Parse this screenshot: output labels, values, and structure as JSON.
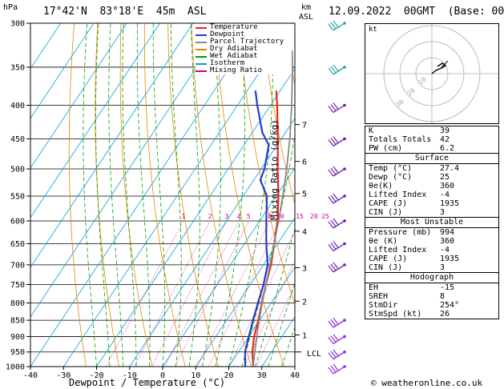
{
  "header": {
    "location": "17°42'N  83°18'E  45m  ASL",
    "datetime": "12.09.2022  00GMT  (Base: 00)",
    "hpa_unit": "hPa",
    "km_unit": "km",
    "asl_unit": "ASL"
  },
  "legend": [
    {
      "label": "Temperature",
      "color": "#e8281e"
    },
    {
      "label": "Dewpoint",
      "color": "#1e3cd2"
    },
    {
      "label": "Parcel Trajectory",
      "color": "#888888"
    },
    {
      "label": "Dry Adiabat",
      "color": "#e08a00"
    },
    {
      "label": "Wet Adiabat",
      "color": "#00a000"
    },
    {
      "label": "Isotherm",
      "color": "#00a0e0"
    },
    {
      "label": "Mixing Ratio",
      "color": "#d0008a"
    }
  ],
  "axes": {
    "xlabel": "Dewpoint / Temperature (°C)",
    "mixing_label": "Mixing Ratio (g/kg)",
    "lcl_label": "LCL"
  },
  "chart_data": {
    "type": "line",
    "pressure_ticks": [
      300,
      350,
      400,
      450,
      500,
      550,
      600,
      650,
      700,
      750,
      800,
      850,
      900,
      950,
      1000
    ],
    "x_ticks": [
      -40,
      -30,
      -20,
      -10,
      0,
      10,
      20,
      30,
      40
    ],
    "xlim": [
      -40,
      40
    ],
    "ylim": [
      1000,
      300
    ],
    "km_ticks": [
      {
        "km": "7",
        "p": 428
      },
      {
        "km": "6",
        "p": 487
      },
      {
        "km": "5",
        "p": 545
      },
      {
        "km": "4",
        "p": 622
      },
      {
        "km": "3",
        "p": 707
      },
      {
        "km": "2",
        "p": 795
      },
      {
        "km": "1",
        "p": 895
      }
    ],
    "lcl_pressure": 950,
    "mixing_ratio_labels": [
      "1",
      "2",
      "3",
      "4",
      "5",
      "8",
      "10",
      "15",
      "20",
      "25"
    ],
    "mixing_ratio_values": [
      1,
      2,
      3,
      4,
      5,
      8,
      10,
      15,
      20,
      25
    ],
    "series": [
      {
        "name": "Temperature",
        "points": [
          [
            1000,
            27.4
          ],
          [
            950,
            24.2
          ],
          [
            900,
            21.6
          ],
          [
            850,
            19.6
          ],
          [
            800,
            17.2
          ],
          [
            750,
            14.7
          ],
          [
            700,
            12.3
          ],
          [
            650,
            9.0
          ],
          [
            600,
            5.4
          ],
          [
            550,
            0.7
          ],
          [
            500,
            -5.0
          ],
          [
            450,
            -11.0
          ],
          [
            400,
            -18.0
          ],
          [
            380,
            -21.2
          ]
        ]
      },
      {
        "name": "Dewpoint",
        "points": [
          [
            1000,
            25.0
          ],
          [
            950,
            22.0
          ],
          [
            900,
            20.0
          ],
          [
            850,
            18.0
          ],
          [
            800,
            16.0
          ],
          [
            750,
            14.0
          ],
          [
            700,
            11.3
          ],
          [
            650,
            6.6
          ],
          [
            600,
            2.0
          ],
          [
            550,
            -2.8
          ],
          [
            520,
            -8.0
          ],
          [
            500,
            -9.0
          ],
          [
            460,
            -12.5
          ],
          [
            440,
            -17.0
          ],
          [
            400,
            -24.0
          ],
          [
            380,
            -27.5
          ]
        ]
      },
      {
        "name": "Parcel Trajectory",
        "points": [
          [
            1000,
            27.4
          ],
          [
            950,
            24.9
          ],
          [
            900,
            22.4
          ],
          [
            850,
            19.9
          ],
          [
            800,
            17.3
          ],
          [
            750,
            14.7
          ],
          [
            700,
            12.0
          ],
          [
            650,
            9.0
          ],
          [
            600,
            5.7
          ],
          [
            550,
            2.0
          ],
          [
            500,
            -2.3
          ],
          [
            450,
            -7.4
          ],
          [
            400,
            -13.6
          ],
          [
            350,
            -21.0
          ],
          [
            330,
            -24.5
          ]
        ]
      }
    ]
  },
  "hodograph": {
    "label": "kt",
    "ring_labels": [
      "10",
      "20",
      "30"
    ]
  },
  "wind_barb_pressures": [
    300,
    350,
    400,
    450,
    500,
    550,
    600,
    650,
    700,
    850,
    900,
    950,
    1000
  ],
  "indices": [
    {
      "k": "K",
      "v": "39"
    },
    {
      "k": "Totals Totals",
      "v": "42"
    },
    {
      "k": "PW (cm)",
      "v": "6.2"
    }
  ],
  "surface": {
    "title": "Surface",
    "rows": [
      {
        "k": "Temp (°C)",
        "v": "27.4"
      },
      {
        "k": "Dewp (°C)",
        "v": "25"
      },
      {
        "k": "θe(K)",
        "v": "360"
      },
      {
        "k": "Lifted Index",
        "v": "-4"
      },
      {
        "k": "CAPE (J)",
        "v": "1935"
      },
      {
        "k": "CIN (J)",
        "v": "3"
      }
    ]
  },
  "unstable": {
    "title": "Most Unstable",
    "rows": [
      {
        "k": "Pressure (mb)",
        "v": "994"
      },
      {
        "k": "θe (K)",
        "v": "360"
      },
      {
        "k": "Lifted Index",
        "v": "-4"
      },
      {
        "k": "CAPE (J)",
        "v": "1935"
      },
      {
        "k": "CIN (J)",
        "v": "3"
      }
    ]
  },
  "hodo_table": {
    "title": "Hodograph",
    "rows": [
      {
        "k": "EH",
        "v": "-15"
      },
      {
        "k": "SREH",
        "v": "8"
      },
      {
        "k": "StmDir",
        "v": "254°"
      },
      {
        "k": "StmSpd (kt)",
        "v": "26"
      }
    ]
  },
  "copyright": "© weatheronline.co.uk"
}
